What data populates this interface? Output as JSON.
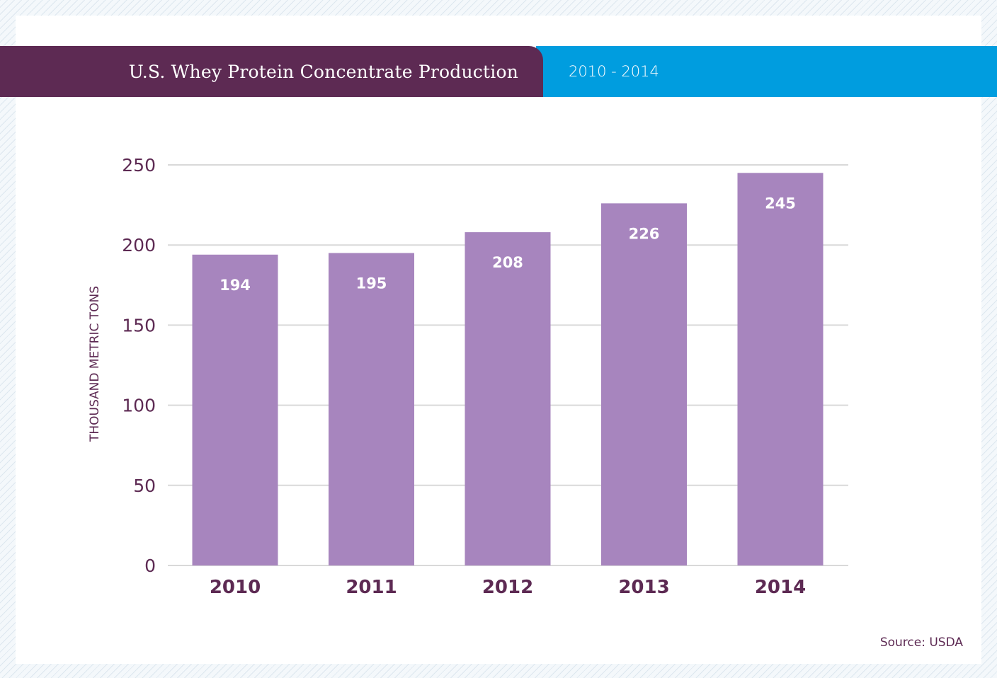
{
  "header": {
    "title": "U.S. Whey Protein Concentrate Production",
    "subtitle": "2010 - 2014"
  },
  "source": "Source: USDA",
  "colors": {
    "title_bar": "#5d2a53",
    "subtitle_bar": "#009ddf",
    "bars": "#a785be",
    "text": "#5d2a53",
    "grid": "#d9d9d9"
  },
  "chart_data": {
    "type": "bar",
    "title": "U.S. Whey Protein Concentrate Production",
    "subtitle": "2010 - 2014",
    "categories": [
      "2010",
      "2011",
      "2012",
      "2013",
      "2014"
    ],
    "values": [
      194,
      195,
      208,
      226,
      245
    ],
    "ylabel": "THOUSAND METRIC TONS",
    "xlabel": "",
    "ylim": [
      0,
      250
    ],
    "yticks": [
      0,
      50,
      100,
      150,
      200,
      250
    ],
    "grid": true,
    "data_labels": true,
    "legend": "none"
  }
}
